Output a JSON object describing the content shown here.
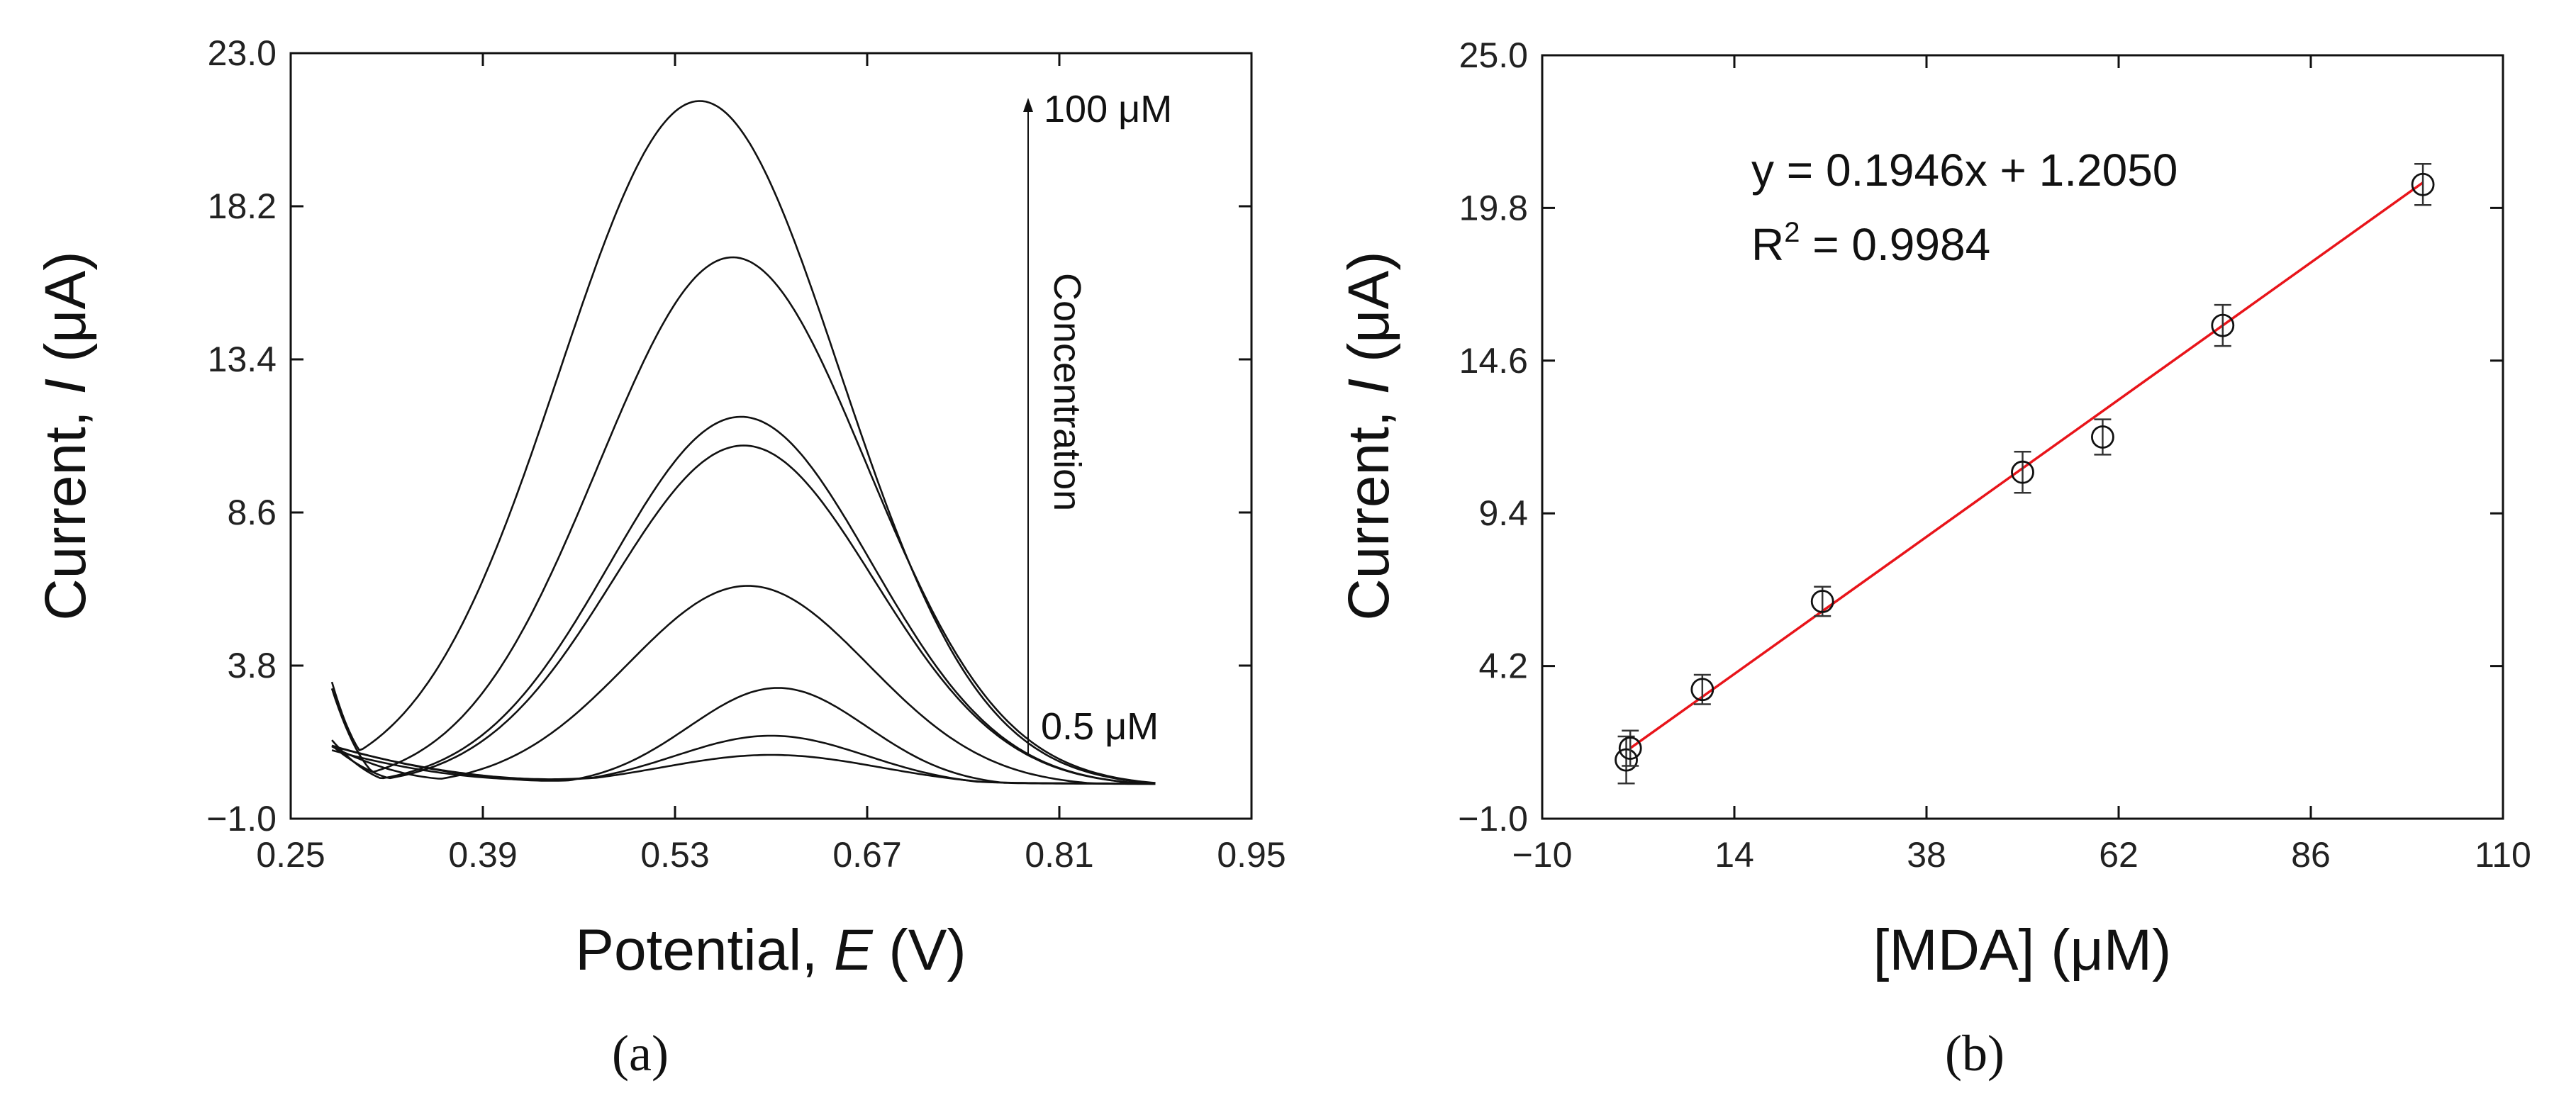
{
  "chart_data": [
    {
      "type": "line",
      "panel_label": "(a)",
      "xlabel": {
        "prefix": "Potential, ",
        "var": "E",
        "suffix": " (V)"
      },
      "ylabel": {
        "prefix": "Current, ",
        "var": "I",
        "suffix": " (μA)"
      },
      "xlim": [
        0.25,
        0.95
      ],
      "ylim": [
        -1.0,
        23.0
      ],
      "xticks": [
        "0.25",
        "0.39",
        "0.53",
        "0.67",
        "0.81",
        "0.95"
      ],
      "yticks": [
        "−1.0",
        "3.8",
        "8.6",
        "13.4",
        "18.2",
        "23.0"
      ],
      "annotations": {
        "top": "100 μM",
        "bottom": "0.5 μM",
        "arrow_label": "Concentration"
      },
      "x_range": [
        0.28,
        0.88
      ],
      "series": [
        {
          "peak_x": 0.548,
          "peak_y": 21.5,
          "sigma": 0.102,
          "start_y": 4.2,
          "min_x": 0.325,
          "min_y": -0.2,
          "end_y": 0.1
        },
        {
          "peak_x": 0.572,
          "peak_y": 16.6,
          "sigma": 0.098,
          "start_y": 3.7,
          "min_x": 0.33,
          "min_y": -0.2,
          "end_y": 0.1
        },
        {
          "peak_x": 0.578,
          "peak_y": 11.6,
          "sigma": 0.095,
          "start_y": 1.7,
          "min_x": 0.345,
          "min_y": -0.1,
          "end_y": 0.1
        },
        {
          "peak_x": 0.58,
          "peak_y": 10.7,
          "sigma": 0.095,
          "start_y": 1.5,
          "min_x": 0.36,
          "min_y": -0.1,
          "end_y": 0.1
        },
        {
          "peak_x": 0.583,
          "peak_y": 6.3,
          "sigma": 0.088,
          "start_y": 1.4,
          "min_x": 0.4,
          "min_y": 0.1,
          "end_y": 0.1
        },
        {
          "peak_x": 0.605,
          "peak_y": 3.1,
          "sigma": 0.065,
          "start_y": 1.3,
          "min_x": 0.46,
          "min_y": 0.2,
          "end_y": 0.1
        },
        {
          "peak_x": 0.6,
          "peak_y": 1.6,
          "sigma": 0.07,
          "start_y": 1.3,
          "min_x": 0.45,
          "min_y": 0.3,
          "end_y": 0.1
        },
        {
          "peak_x": 0.6,
          "peak_y": 1.0,
          "sigma": 0.08,
          "start_y": 1.2,
          "min_x": 0.44,
          "min_y": 0.3,
          "end_y": 0.1
        }
      ]
    },
    {
      "type": "scatter",
      "panel_label": "(b)",
      "xlabel": "[MDA] (μM)",
      "ylabel": {
        "prefix": "Current, ",
        "var": "I",
        "suffix": " (μA)"
      },
      "xlim": [
        -10,
        110
      ],
      "ylim": [
        -1.0,
        25.0
      ],
      "xticks": [
        "−10",
        "14",
        "38",
        "62",
        "86",
        "110"
      ],
      "yticks": [
        "−1.0",
        "4.2",
        "9.4",
        "14.6",
        "19.8",
        "25.0"
      ],
      "equation": "y = 0.1946x + 1.2050",
      "r2_label": {
        "base": "R",
        "sup": "2",
        "rest": " = 0.9984"
      },
      "fit": {
        "slope": 0.1946,
        "intercept": 1.205,
        "x_range": [
          1,
          100
        ]
      },
      "points": [
        {
          "x": 0.5,
          "y": 1.0,
          "err": 0.8
        },
        {
          "x": 1.0,
          "y": 1.4,
          "err": 0.6
        },
        {
          "x": 10,
          "y": 3.4,
          "err": 0.5
        },
        {
          "x": 25,
          "y": 6.4,
          "err": 0.5
        },
        {
          "x": 50,
          "y": 10.8,
          "err": 0.7
        },
        {
          "x": 60,
          "y": 12.0,
          "err": 0.6
        },
        {
          "x": 75,
          "y": 15.8,
          "err": 0.7
        },
        {
          "x": 100,
          "y": 20.6,
          "err": 0.7
        }
      ]
    }
  ]
}
